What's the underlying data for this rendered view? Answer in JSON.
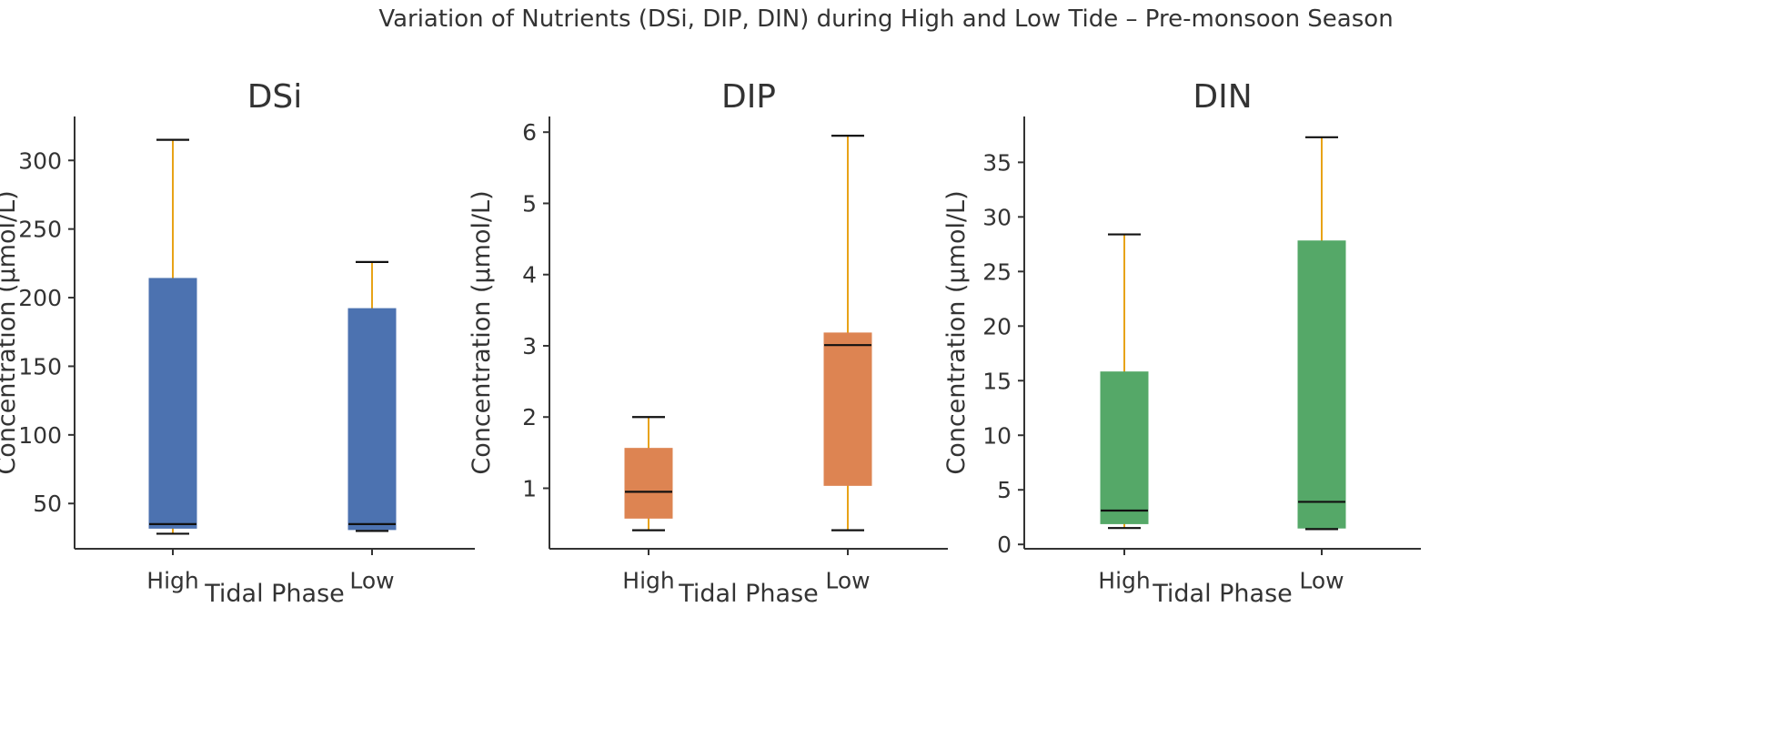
{
  "figure": {
    "title": "Variation of Nutrients (DSi, DIP, DIN) during High and Low Tide – Pre-monsoon Season"
  },
  "colors": {
    "axis": "#333333",
    "whisker": "#e8a317",
    "median": "#111111"
  },
  "chart_data": [
    {
      "type": "box",
      "title": "DSi",
      "xlabel": "Tidal Phase",
      "ylabel": "Concentration (µmol/L)",
      "categories": [
        "High",
        "Low"
      ],
      "ylim": [
        17,
        332
      ],
      "yticks": [
        50,
        100,
        150,
        200,
        250,
        300
      ],
      "color": "#4c72b0",
      "boxes": [
        {
          "category": "High",
          "min": 28,
          "q1": 32,
          "median": 35,
          "q3": 214,
          "max": 315
        },
        {
          "category": "Low",
          "min": 30,
          "q1": 31,
          "median": 35,
          "q3": 192,
          "max": 226
        }
      ]
    },
    {
      "type": "box",
      "title": "DIP",
      "xlabel": "Tidal Phase",
      "ylabel": "Concentration (µmol/L)",
      "categories": [
        "High",
        "Low"
      ],
      "ylim": [
        0.15,
        6.22
      ],
      "yticks": [
        1,
        2,
        3,
        4,
        5,
        6
      ],
      "color": "#dd8452",
      "boxes": [
        {
          "category": "High",
          "min": 0.41,
          "q1": 0.58,
          "median": 0.95,
          "q3": 1.56,
          "max": 2.0
        },
        {
          "category": "Low",
          "min": 0.41,
          "q1": 1.04,
          "median": 3.01,
          "q3": 3.18,
          "max": 5.95
        }
      ]
    },
    {
      "type": "box",
      "title": "DIN",
      "xlabel": "Tidal Phase",
      "ylabel": "Concentration (µmol/L)",
      "categories": [
        "High",
        "Low"
      ],
      "ylim": [
        -0.4,
        39.2
      ],
      "yticks": [
        0,
        5,
        10,
        15,
        20,
        25,
        30,
        35
      ],
      "color": "#55a868",
      "boxes": [
        {
          "category": "High",
          "min": 1.5,
          "q1": 1.9,
          "median": 3.1,
          "q3": 15.8,
          "max": 28.4
        },
        {
          "category": "Low",
          "min": 1.4,
          "q1": 1.5,
          "median": 3.9,
          "q3": 27.8,
          "max": 37.3
        }
      ]
    }
  ]
}
